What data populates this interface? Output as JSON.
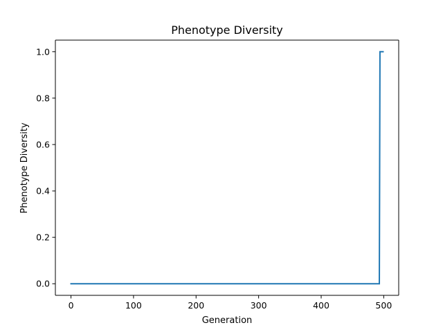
{
  "chart_data": {
    "type": "line",
    "title": "Phenotype Diversity",
    "xlabel": "Generation",
    "ylabel": "Phenotype Diversity",
    "xlim": [
      -24.95,
      523.95
    ],
    "ylim": [
      -0.05,
      1.05
    ],
    "xticks": [
      0,
      100,
      200,
      300,
      400,
      500
    ],
    "yticks": [
      0.0,
      0.2,
      0.4,
      0.6,
      0.8,
      1.0
    ],
    "xtick_labels": [
      "0",
      "100",
      "200",
      "300",
      "400",
      "500"
    ],
    "ytick_labels": [
      "0.0",
      "0.2",
      "0.4",
      "0.6",
      "0.8",
      "1.0"
    ],
    "grid": false,
    "series": [
      {
        "color": "#1f77b4",
        "x": [
          0,
          493,
          494,
          499
        ],
        "y": [
          0.0,
          0.0,
          1.0,
          1.0
        ]
      }
    ]
  }
}
